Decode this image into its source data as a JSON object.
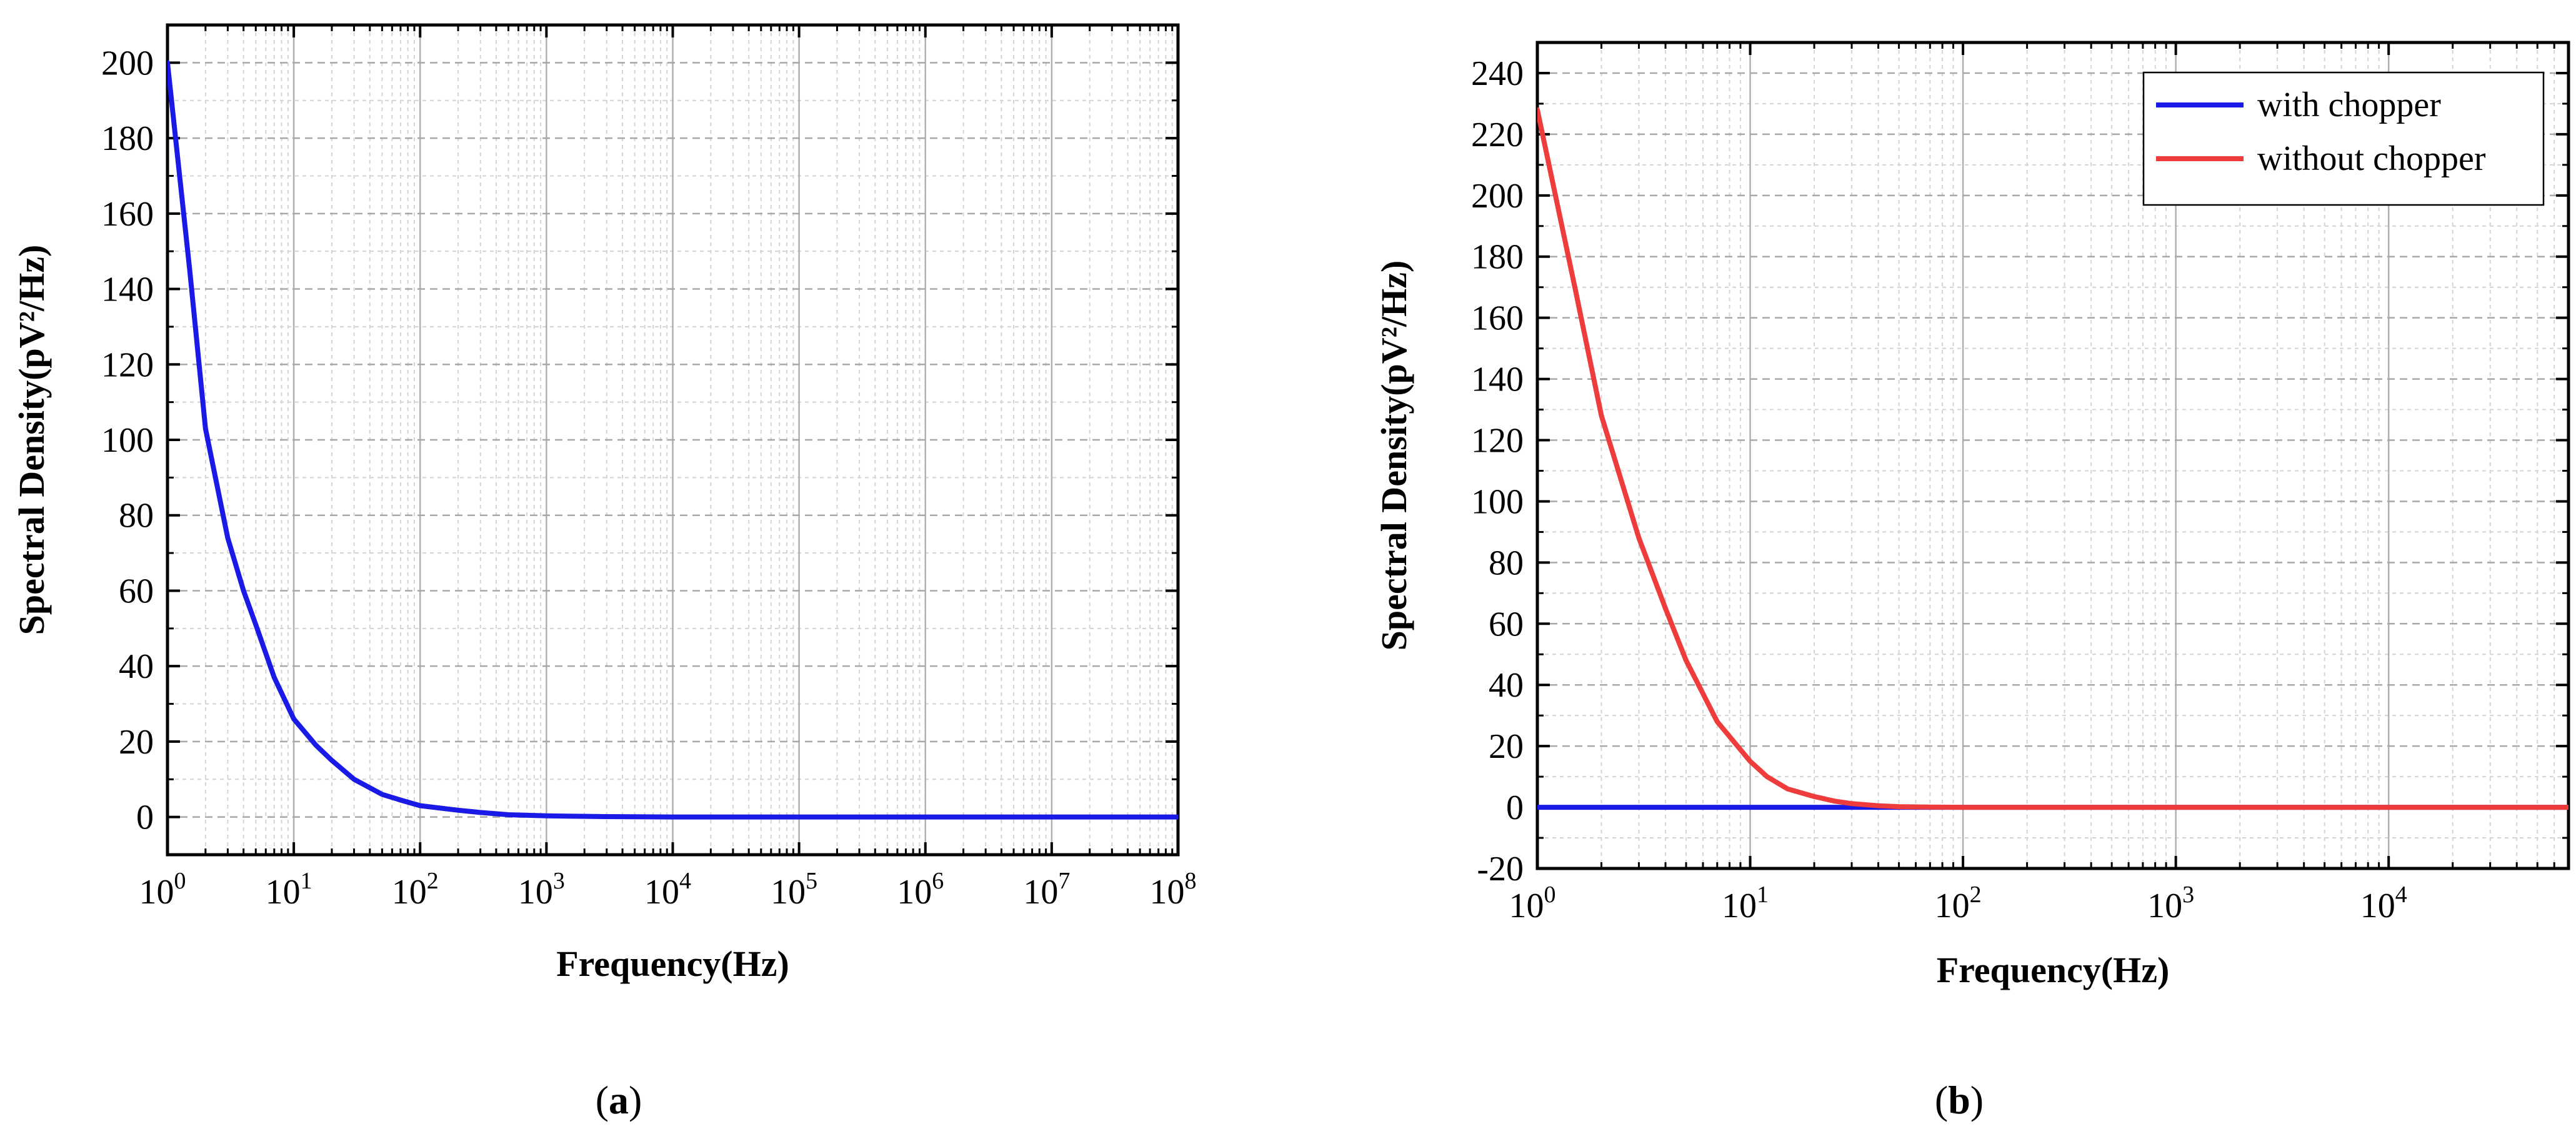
{
  "figure": {
    "panels": [
      {
        "caption": "(a)",
        "caption_open": "(",
        "caption_letter": "a",
        "caption_close": ")"
      },
      {
        "caption": "(b)",
        "caption_open": "(",
        "caption_letter": "b",
        "caption_close": ")"
      }
    ]
  },
  "chart_data": [
    {
      "panel": "a",
      "type": "line",
      "title": "",
      "xlabel": "Frequency(Hz)",
      "ylabel": "Spectral Density(pV²/Hz)",
      "xscale": "log",
      "xlim": [
        1,
        100000000
      ],
      "ylim": [
        -10,
        210
      ],
      "xticks": [
        1,
        10,
        100,
        1000,
        10000,
        100000,
        1000000,
        10000000,
        100000000
      ],
      "xtick_labels": [
        "10^0",
        "10^1",
        "10^2",
        "10^3",
        "10^4",
        "10^5",
        "10^6",
        "10^7",
        "10^8"
      ],
      "yticks": [
        0,
        20,
        40,
        60,
        80,
        100,
        120,
        140,
        160,
        180,
        200
      ],
      "grid": true,
      "legend": null,
      "series": [
        {
          "color": "#1a1ae6",
          "x": [
            1,
            1.5,
            2,
            3,
            4,
            5,
            7,
            10,
            15,
            20,
            30,
            50,
            70,
            100,
            200,
            300,
            500,
            1000,
            3000,
            10000,
            100000,
            1000000,
            10000000,
            100000000
          ],
          "y": [
            200,
            145,
            103,
            74,
            60,
            51,
            37,
            26,
            19,
            15,
            10,
            6,
            4.5,
            3,
            1.8,
            1.2,
            0.6,
            0.3,
            0.1,
            0,
            0,
            0,
            0,
            0
          ]
        }
      ]
    },
    {
      "panel": "b",
      "type": "line",
      "title": "",
      "xlabel": "Frequency(Hz)",
      "ylabel": "Spectral Density(pV²/Hz)",
      "xscale": "log",
      "xlim": [
        1,
        70000
      ],
      "ylim": [
        -20,
        250
      ],
      "xticks": [
        1,
        10,
        100,
        1000,
        10000
      ],
      "xtick_labels": [
        "10^0",
        "10^1",
        "10^2",
        "10^3",
        "10^4"
      ],
      "yticks": [
        -20,
        0,
        20,
        40,
        60,
        80,
        100,
        120,
        140,
        160,
        180,
        200,
        220,
        240
      ],
      "grid": true,
      "legend": "top-right",
      "series": [
        {
          "name": "with chopper",
          "color": "#1a1ae6",
          "x": [
            1,
            10,
            100,
            1000,
            10000,
            70000
          ],
          "y": [
            0,
            0,
            0,
            0,
            0,
            0
          ]
        },
        {
          "name": "without chopper",
          "color": "#ee3b3b",
          "x": [
            1,
            1.5,
            2,
            3,
            4,
            5,
            7,
            10,
            12,
            15,
            20,
            25,
            30,
            40,
            50,
            70,
            100,
            1000,
            10000,
            70000
          ],
          "y": [
            228,
            170,
            128,
            88,
            65,
            48,
            28,
            15,
            10,
            6,
            3.5,
            2,
            1.2,
            0.5,
            0.2,
            0.05,
            0,
            0,
            0,
            0
          ]
        }
      ]
    }
  ]
}
